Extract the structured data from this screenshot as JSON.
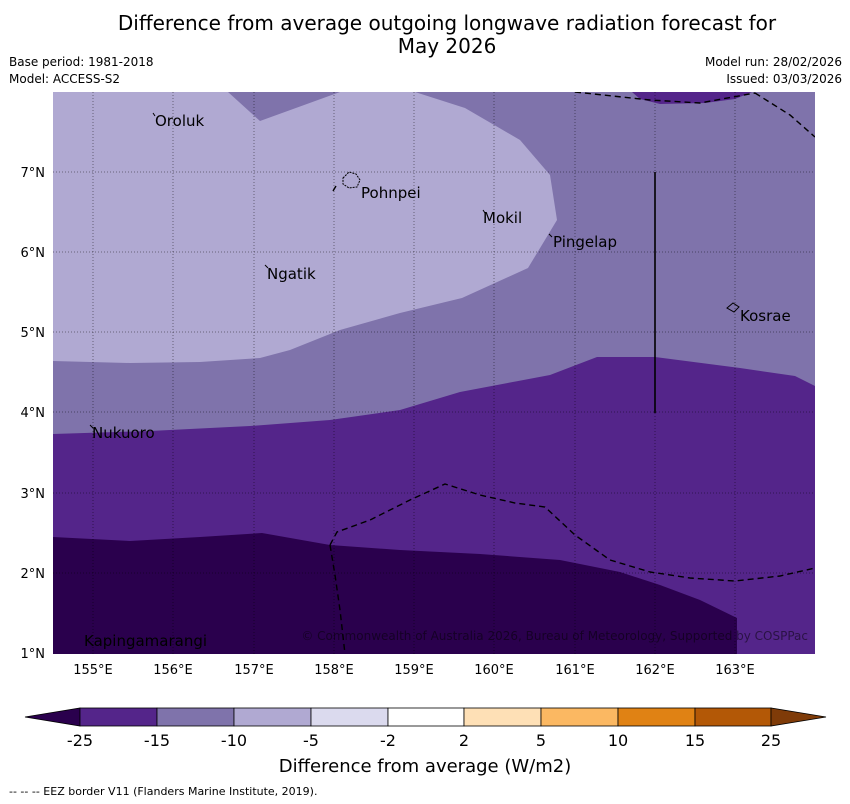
{
  "title_line1": "Difference from average outgoing longwave radiation forecast for",
  "title_line2": "May 2026",
  "base_period": "Base period: 1981-2018",
  "model": "Model: ACCESS-S2",
  "model_run": "Model run: 28/02/2026",
  "issued": "Issued: 03/03/2026",
  "map": {
    "lon_labels": [
      "155°E",
      "156°E",
      "157°E",
      "158°E",
      "159°E",
      "160°E",
      "161°E",
      "162°E",
      "163°E"
    ],
    "lat_labels": [
      "7°N",
      "6°N",
      "5°N",
      "4°N",
      "3°N",
      "2°N",
      "1°N"
    ],
    "places": [
      "Oroluk",
      "Pohnpei",
      "Mokil",
      "Pingelap",
      "Ngatik",
      "Kosrae",
      "Nukuoro",
      "Kapingamarangi"
    ],
    "copyright": "© Commonwealth of Australia 2026, Bureau of Meteorology, Supported by COSPPac"
  },
  "colorbar": {
    "label": "Difference from average (W/m2)",
    "ticks": [
      "-25",
      "-15",
      "-10",
      "-5",
      "-2",
      "2",
      "5",
      "10",
      "15",
      "25"
    ],
    "colors": [
      "#2a004d",
      "#54258a",
      "#7f73ab",
      "#b0a9d2",
      "#dbdaee",
      "#ffffff",
      "#fee0b6",
      "#fbb862",
      "#e08214",
      "#b35806",
      "#7f3b08"
    ]
  },
  "footer": "--  --  -- EEZ border V11 (Flanders Marine Institute, 2019)."
}
